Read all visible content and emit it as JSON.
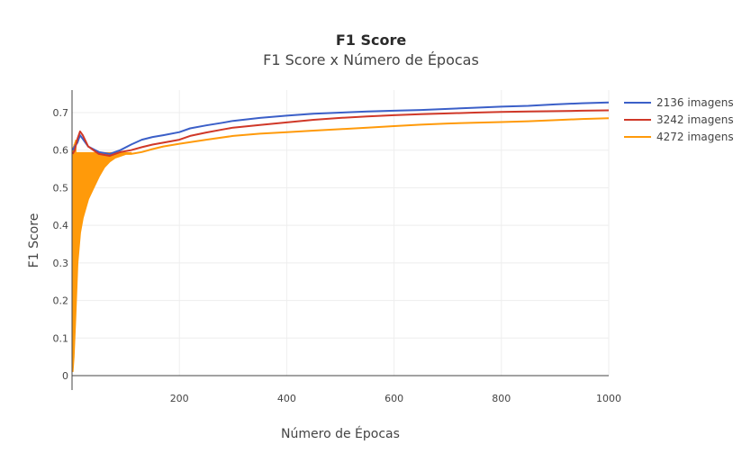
{
  "chart_data": {
    "type": "line",
    "title": "F1 Score",
    "subtitle": "F1 Score x Número de Épocas",
    "xlabel": "Número de Épocas",
    "ylabel": "F1 Score",
    "xlim": [
      0,
      1000
    ],
    "ylim": [
      0,
      0.76
    ],
    "x_ticks": [
      200,
      400,
      600,
      800,
      1000
    ],
    "y_ticks": [
      0,
      0.1,
      0.2,
      0.3,
      0.4,
      0.5,
      0.6,
      0.7
    ],
    "y_tick_labels": [
      "0",
      "0.1",
      "0.2",
      "0.3",
      "0.4",
      "0.5",
      "0.6",
      "0.7"
    ],
    "grid": true,
    "legend_position": "top-right",
    "series": [
      {
        "name": "2136 imagens",
        "color": "#3b5fc8",
        "x": [
          1,
          5,
          10,
          15,
          20,
          30,
          50,
          70,
          90,
          110,
          130,
          150,
          170,
          200,
          220,
          250,
          280,
          300,
          350,
          400,
          450,
          500,
          550,
          600,
          650,
          700,
          750,
          800,
          850,
          900,
          950,
          1000
        ],
        "y": [
          0.6,
          0.61,
          0.62,
          0.64,
          0.63,
          0.61,
          0.595,
          0.59,
          0.6,
          0.615,
          0.628,
          0.635,
          0.64,
          0.648,
          0.658,
          0.666,
          0.673,
          0.678,
          0.686,
          0.692,
          0.697,
          0.7,
          0.703,
          0.705,
          0.707,
          0.71,
          0.713,
          0.716,
          0.718,
          0.722,
          0.725,
          0.727
        ]
      },
      {
        "name": "3242 imagens",
        "color": "#d03828",
        "x": [
          1,
          5,
          10,
          15,
          20,
          30,
          50,
          70,
          90,
          110,
          130,
          150,
          170,
          200,
          220,
          250,
          280,
          300,
          350,
          400,
          450,
          500,
          550,
          600,
          650,
          700,
          750,
          800,
          850,
          900,
          950,
          1000
        ],
        "y": [
          0.59,
          0.6,
          0.63,
          0.65,
          0.64,
          0.61,
          0.59,
          0.585,
          0.595,
          0.6,
          0.608,
          0.615,
          0.62,
          0.628,
          0.638,
          0.647,
          0.655,
          0.66,
          0.667,
          0.674,
          0.681,
          0.686,
          0.69,
          0.693,
          0.696,
          0.698,
          0.7,
          0.702,
          0.703,
          0.704,
          0.705,
          0.706
        ]
      },
      {
        "name": "4272 imagens",
        "color": "#ff9a0a",
        "x": [
          1,
          3,
          6,
          10,
          15,
          20,
          30,
          40,
          50,
          60,
          70,
          80,
          90,
          100,
          110,
          130,
          150,
          170,
          200,
          250,
          300,
          350,
          400,
          450,
          500,
          550,
          600,
          650,
          700,
          750,
          800,
          850,
          900,
          950,
          1000
        ],
        "y": [
          0.01,
          0.05,
          0.15,
          0.3,
          0.38,
          0.42,
          0.47,
          0.5,
          0.53,
          0.555,
          0.57,
          0.58,
          0.585,
          0.59,
          0.59,
          0.595,
          0.603,
          0.61,
          0.617,
          0.628,
          0.638,
          0.644,
          0.648,
          0.652,
          0.656,
          0.66,
          0.664,
          0.668,
          0.671,
          0.673,
          0.675,
          0.677,
          0.68,
          0.683,
          0.685
        ]
      }
    ]
  }
}
